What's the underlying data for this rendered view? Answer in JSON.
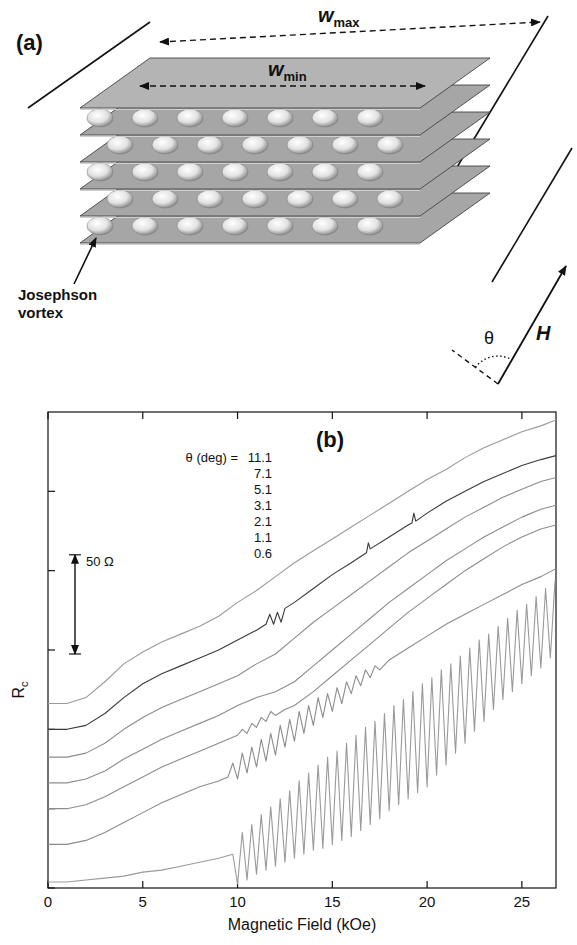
{
  "diagram": {
    "panel": "(a)",
    "w_max": {
      "text": "w",
      "subscript": "max"
    },
    "w_min": {
      "text": "w",
      "subscript": "min"
    },
    "vortex_label": "Josephson vortex",
    "field_label": "H",
    "angle_label": "θ"
  },
  "chart_data": {
    "type": "line",
    "panel": "(b)",
    "xlabel": "Magnetic Field (kOe)",
    "ylabel": {
      "text": "R",
      "subscript": "c"
    },
    "legend_title": "θ (deg) =",
    "legend": "top-left",
    "grid": false,
    "tick_labels": "x",
    "xlim": [
      0,
      26.8
    ],
    "xticks": [
      0,
      5,
      10,
      15,
      20,
      25
    ],
    "ylim": [
      0,
      240
    ],
    "yticks": [
      0,
      40,
      80,
      120,
      160,
      200
    ],
    "scale_bar": {
      "label": "50 Ω",
      "from": 118,
      "to": 168
    },
    "series": [
      {
        "name": "11.1",
        "color": "#9a9a9a",
        "x": [
          0,
          1,
          2,
          3,
          4,
          5,
          6,
          7,
          8,
          9,
          10,
          11,
          12,
          13,
          14,
          15,
          16,
          17,
          18,
          19,
          20,
          21,
          22,
          23,
          24,
          25,
          26,
          26.8
        ],
        "values": [
          93,
          93,
          96,
          104,
          113,
          119,
          124,
          128,
          132,
          137,
          144,
          150,
          157,
          164,
          170,
          176,
          182,
          188,
          194,
          200,
          206,
          211,
          217,
          222,
          226,
          230,
          233,
          236
        ]
      },
      {
        "name": "7.1",
        "color": "#3a3a3a",
        "x": [
          0,
          1,
          2,
          3,
          4,
          5,
          6,
          7,
          8,
          9,
          10,
          11,
          11.5,
          11.7,
          11.9,
          12.1,
          12.3,
          12.5,
          13,
          14,
          15,
          16,
          16.8,
          16.9,
          17,
          18,
          19,
          19.2,
          19.3,
          19.4,
          20,
          21,
          22,
          23,
          24,
          25,
          26,
          26.8
        ],
        "values": [
          80,
          80,
          82,
          88,
          96,
          103,
          108,
          112,
          116,
          120,
          125,
          130,
          133,
          138,
          133,
          139,
          134,
          141,
          144,
          151,
          158,
          164,
          169,
          174,
          171,
          177,
          183,
          184,
          189,
          185,
          189,
          195,
          200,
          205,
          209,
          213,
          216,
          218
        ]
      },
      {
        "name": "5.1",
        "color": "#8c8c8c",
        "x": [
          0,
          1,
          2,
          3,
          4,
          5,
          6,
          7,
          8,
          9,
          10,
          11,
          12,
          13,
          14,
          15,
          16,
          17,
          18,
          19,
          20,
          21,
          22,
          23,
          24,
          25,
          26,
          26.8
        ],
        "values": [
          66,
          66,
          68,
          73,
          80,
          86,
          91,
          95,
          99,
          103,
          107,
          113,
          118,
          126,
          134,
          141,
          148,
          155,
          162,
          169,
          175,
          181,
          187,
          192,
          197,
          201,
          205,
          207
        ]
      },
      {
        "name": "3.1",
        "color": "#8c8c8c",
        "x": [
          0,
          1,
          2,
          3,
          4,
          5,
          6,
          7,
          8,
          9,
          10,
          11,
          12,
          13,
          14,
          15,
          16,
          17,
          18,
          19,
          20,
          21,
          22,
          23,
          24,
          25,
          26,
          26.8
        ],
        "values": [
          53,
          53,
          55,
          59,
          65,
          70,
          75,
          79,
          83,
          87,
          92,
          96,
          99,
          104,
          112,
          120,
          128,
          136,
          144,
          151,
          158,
          165,
          171,
          177,
          182,
          187,
          191,
          193
        ]
      },
      {
        "name": "2.1",
        "color": "#8c8c8c",
        "x": [
          0,
          1,
          2,
          3,
          4,
          5,
          6,
          7,
          8,
          9,
          10,
          10.25,
          10.5,
          10.75,
          11,
          11.25,
          11.5,
          11.75,
          12,
          12.5,
          13,
          14,
          15,
          16,
          17,
          18,
          19,
          20,
          21,
          22,
          23,
          24,
          25,
          26,
          26.8
        ],
        "values": [
          40,
          40,
          42,
          46,
          51,
          56,
          61,
          65,
          69,
          73,
          77,
          80,
          78,
          83,
          81,
          86,
          84,
          89,
          87,
          90,
          92,
          99,
          107,
          115,
          123,
          131,
          139,
          146,
          153,
          160,
          166,
          172,
          177,
          181,
          183
        ]
      },
      {
        "name": "1.1",
        "color": "#8c8c8c",
        "x": [
          0,
          1,
          2,
          3,
          4,
          5,
          6,
          7,
          8,
          9,
          9.5,
          9.75,
          10,
          10.25,
          10.5,
          10.75,
          11,
          11.25,
          11.5,
          11.75,
          12,
          12.25,
          12.5,
          12.75,
          13,
          13.25,
          13.5,
          13.75,
          14,
          14.25,
          14.5,
          14.75,
          15,
          15.25,
          15.5,
          15.75,
          16,
          16.25,
          16.5,
          16.75,
          17,
          17.25,
          17.5,
          18,
          19,
          20,
          21,
          22,
          23,
          24,
          25,
          26,
          26.8
        ],
        "values": [
          22,
          22,
          24,
          28,
          33,
          38,
          43,
          47,
          51,
          54,
          56,
          63,
          55,
          68,
          58,
          71,
          61,
          75,
          64,
          78,
          67,
          82,
          71,
          85,
          74,
          89,
          78,
          92,
          82,
          96,
          86,
          98,
          89,
          101,
          93,
          104,
          98,
          107,
          102,
          110,
          106,
          112,
          110,
          115,
          121,
          127,
          133,
          138,
          143,
          148,
          153,
          157,
          161
        ]
      },
      {
        "name": "0.6",
        "color": "#9a9a9a",
        "x": [
          0,
          1,
          2,
          3,
          4,
          5,
          6,
          7,
          8,
          9,
          9.75,
          10,
          10.25,
          10.5,
          10.75,
          11,
          11.25,
          11.5,
          11.75,
          12,
          12.25,
          12.5,
          12.75,
          13,
          13.25,
          13.5,
          13.75,
          14,
          14.25,
          14.5,
          14.75,
          15,
          15.25,
          15.5,
          15.75,
          16,
          16.25,
          16.5,
          16.75,
          17,
          17.25,
          17.5,
          17.75,
          18,
          18.25,
          18.5,
          18.75,
          19,
          19.25,
          19.5,
          19.75,
          20,
          20.25,
          20.5,
          20.75,
          21,
          21.25,
          21.5,
          21.75,
          22,
          22.25,
          22.5,
          22.75,
          23,
          23.25,
          23.5,
          23.75,
          24,
          24.25,
          24.5,
          24.75,
          25,
          25.25,
          25.5,
          25.75,
          26,
          26.25,
          26.5,
          26.75
        ],
        "values": [
          3,
          3,
          4,
          5,
          6,
          8,
          9,
          11,
          13,
          15,
          17,
          2,
          28,
          4,
          32,
          7,
          37,
          9,
          41,
          11,
          45,
          13,
          49,
          15,
          54,
          17,
          58,
          19,
          62,
          20,
          66,
          22,
          69,
          24,
          73,
          26,
          77,
          29,
          81,
          32,
          84,
          35,
          88,
          39,
          92,
          42,
          95,
          45,
          99,
          48,
          103,
          51,
          106,
          57,
          110,
          62,
          113,
          68,
          117,
          73,
          121,
          79,
          125,
          84,
          128,
          90,
          132,
          95,
          136,
          99,
          140,
          103,
          143,
          107,
          147,
          111,
          151,
          116,
          155
        ]
      }
    ]
  }
}
